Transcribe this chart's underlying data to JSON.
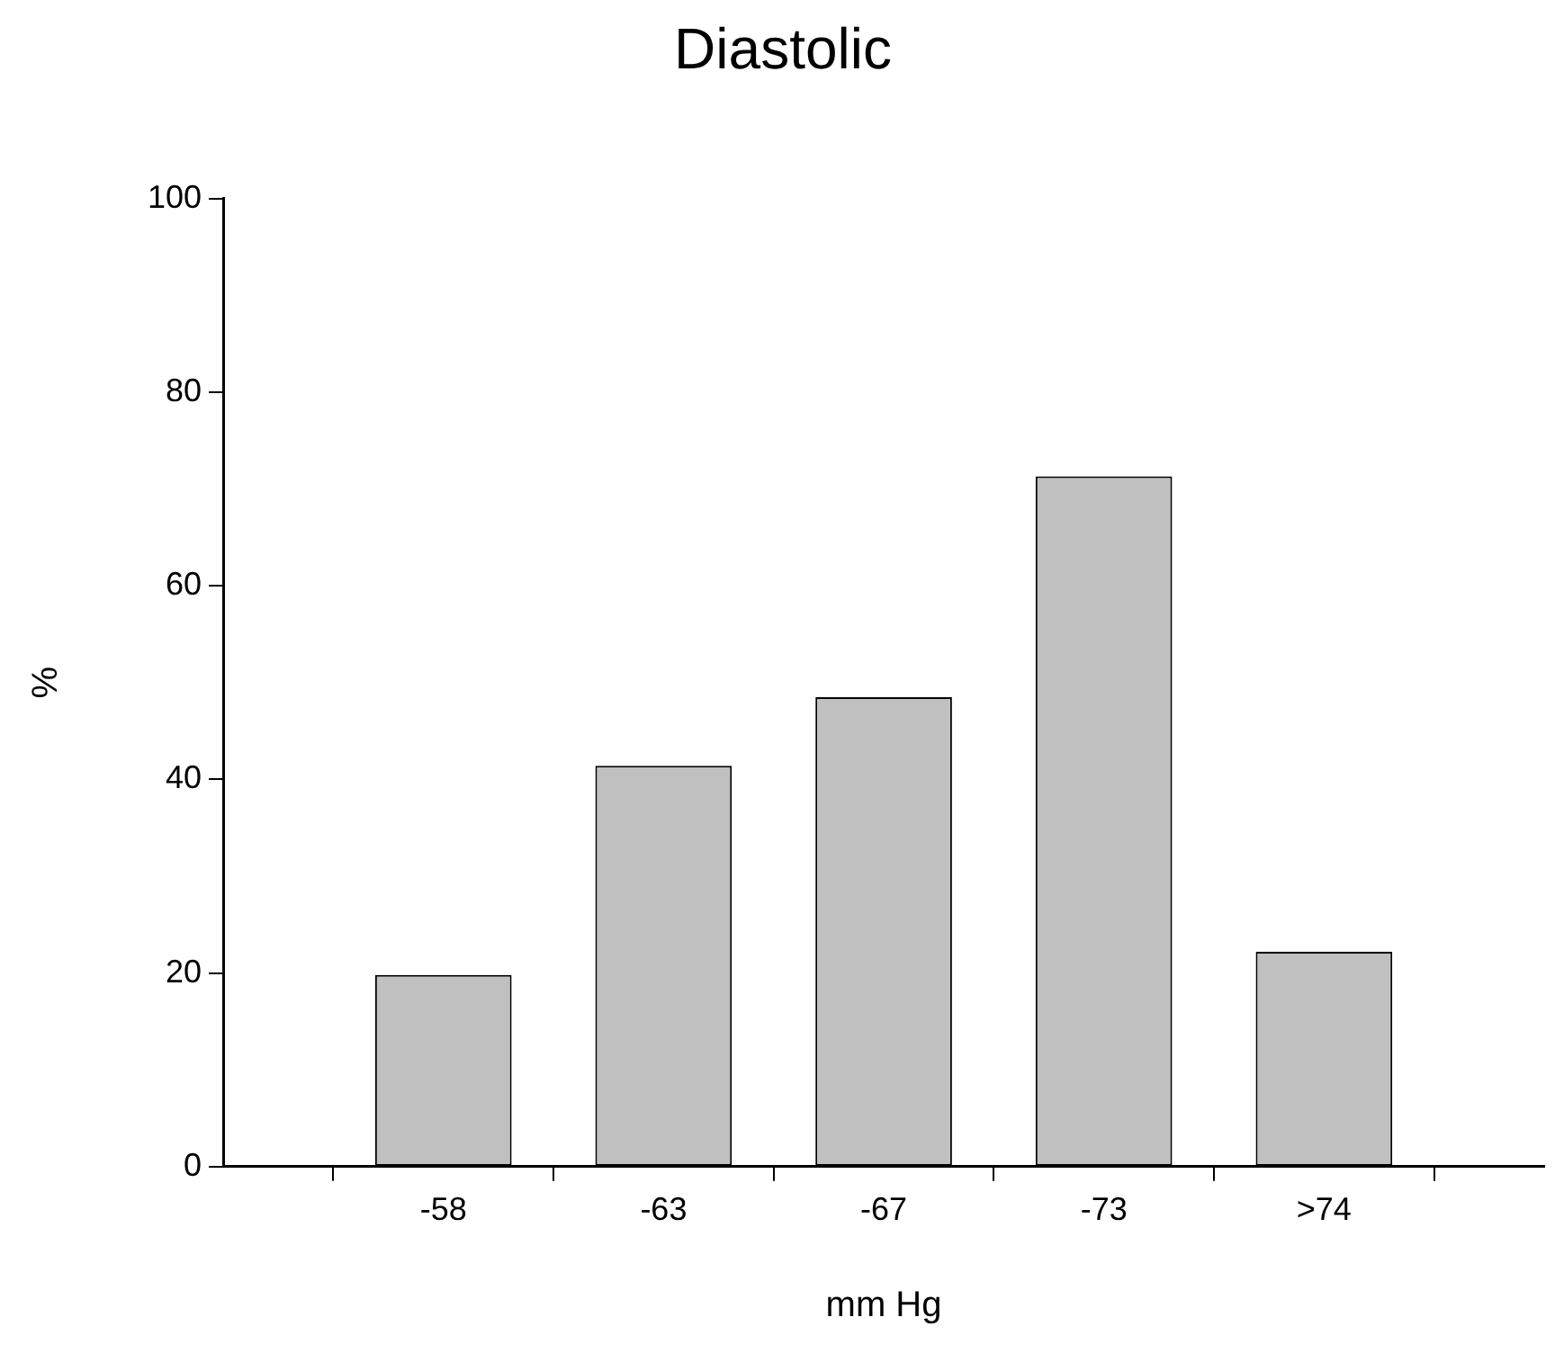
{
  "chart_data": {
    "type": "bar",
    "title": "Diastolic",
    "xlabel": "mm Hg",
    "ylabel": "%",
    "categories": [
      "-58",
      "-63",
      "-67",
      "-73",
      ">74"
    ],
    "values": [
      19.8,
      41.4,
      48.5,
      71.3,
      22.2
    ],
    "color": "#c0c0c0",
    "ylim": [
      0,
      100
    ],
    "yticks": [
      0,
      20,
      40,
      60,
      80,
      100
    ],
    "grid": false,
    "legend": false
  }
}
